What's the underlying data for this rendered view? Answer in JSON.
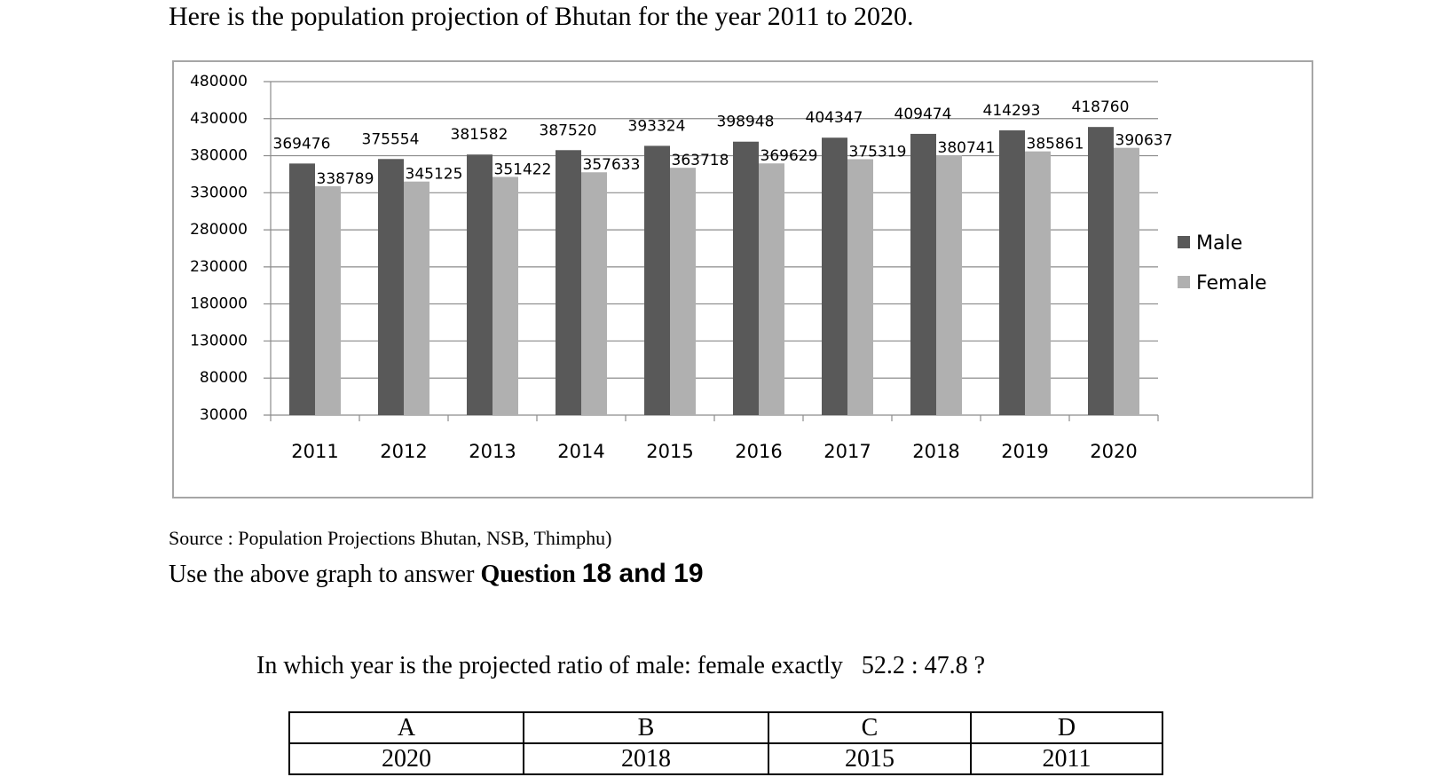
{
  "intro_text": "Here is the population projection of Bhutan for the year 2011 to 2020.",
  "source_text": "Source : Population Projections Bhutan, NSB, Thimphu)",
  "use_text": {
    "prefix": "Use the above graph to answer ",
    "question_word": "Question",
    "numbers": "18 and 19"
  },
  "question_text": "In which year is the projected ratio of male: female exactly   52.2 : 47.8 ?",
  "options": {
    "letters": [
      "A",
      "B",
      "C",
      "D"
    ],
    "values": [
      "2020",
      "2018",
      "2015",
      "2011"
    ]
  },
  "colors": {
    "male": "#595959",
    "female": "#b0b0b0"
  },
  "chart_data": {
    "type": "bar",
    "title": "",
    "xlabel": "",
    "ylabel": "",
    "categories": [
      "2011",
      "2012",
      "2013",
      "2014",
      "2015",
      "2016",
      "2017",
      "2018",
      "2019",
      "2020"
    ],
    "series": [
      {
        "name": "Male",
        "values": [
          369476,
          375554,
          381582,
          387520,
          393324,
          398948,
          404347,
          409474,
          414293,
          418760
        ]
      },
      {
        "name": "Female",
        "values": [
          338789,
          345125,
          351422,
          357633,
          363718,
          369629,
          375319,
          380741,
          385861,
          390637
        ]
      }
    ],
    "ylim": [
      30000,
      480000
    ],
    "yticks": [
      "480000",
      "430000",
      "380000",
      "330000",
      "280000",
      "230000",
      "180000",
      "130000",
      "80000",
      "30000"
    ],
    "grid": true,
    "legend_position": "right"
  }
}
